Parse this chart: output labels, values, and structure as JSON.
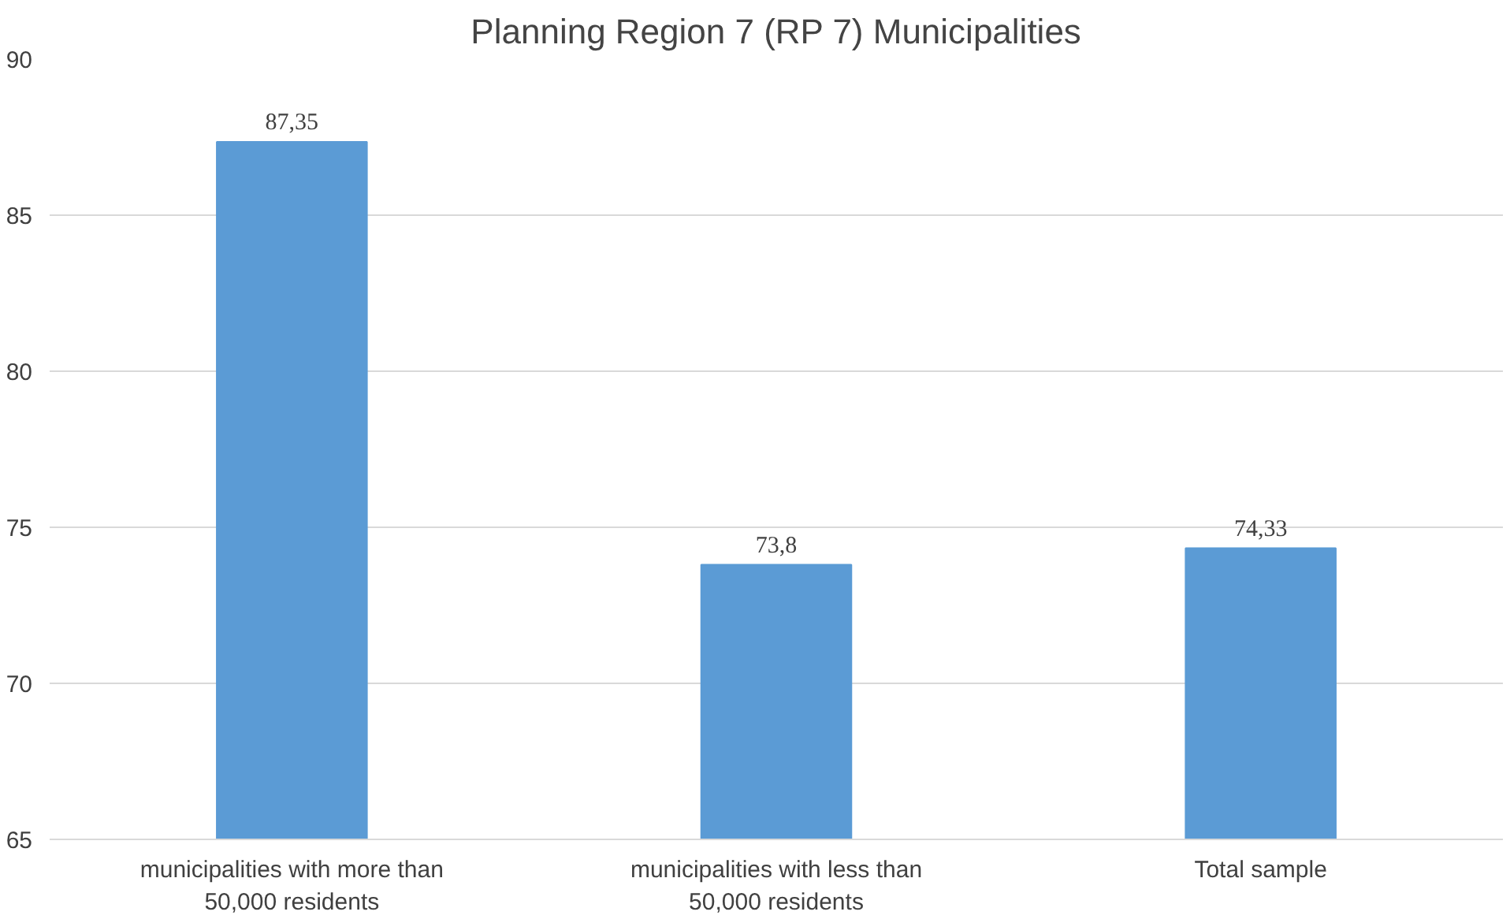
{
  "chart_data": {
    "type": "bar",
    "title": "Planning Region 7 (RP 7) Municipalities",
    "categories": [
      "municipalities with more than 50,000 residents",
      "municipalities with less than 50,000 residents",
      "Total sample"
    ],
    "values": [
      87.35,
      73.8,
      74.33
    ],
    "value_labels": [
      "87,35",
      "73,8",
      "74,33"
    ],
    "color": "#5b9bd5",
    "ylim": [
      65,
      90
    ],
    "yticks": [
      65,
      70,
      75,
      80,
      85,
      90
    ],
    "grid": "y"
  }
}
